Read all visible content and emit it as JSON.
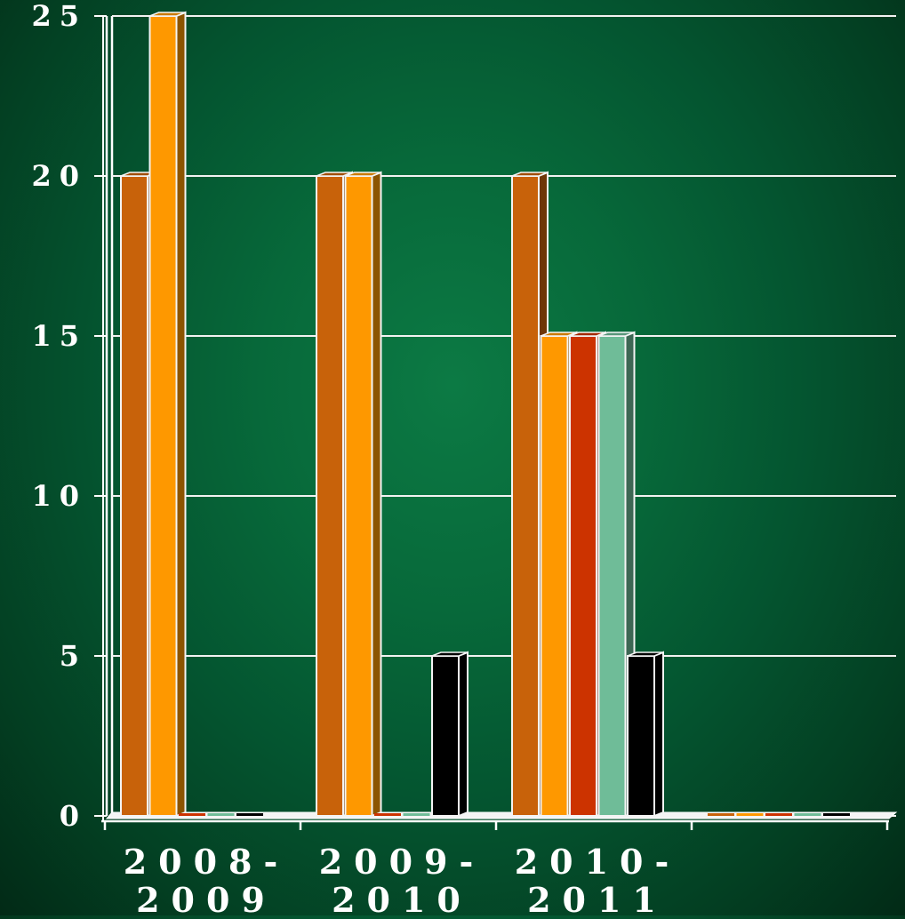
{
  "chart_data": {
    "type": "bar",
    "title": "",
    "xlabel": "",
    "ylabel": "",
    "ylim": [
      0,
      25
    ],
    "yticks": [
      0,
      5,
      10,
      15,
      20,
      25
    ],
    "ytick_labels": [
      "0",
      "5",
      "10",
      "15",
      "20",
      "25"
    ],
    "grid": true,
    "legend": "none",
    "categories": [
      {
        "line1": "2008-",
        "line2": "2009"
      },
      {
        "line1": "2009-",
        "line2": "2010"
      },
      {
        "line1": "2010-",
        "line2": "2011"
      },
      {
        "line1": "",
        "line2": ""
      }
    ],
    "series": [
      {
        "color": "#c8620a",
        "values": [
          20,
          20,
          20,
          0
        ]
      },
      {
        "color": "#fe9800",
        "values": [
          25,
          20,
          15,
          0
        ]
      },
      {
        "color": "#cc3300",
        "values": [
          0,
          0,
          15,
          0
        ]
      },
      {
        "color": "#6fbc98",
        "values": [
          0,
          0,
          15,
          0
        ]
      },
      {
        "color": "#000000",
        "values": [
          0,
          5,
          5,
          0
        ]
      }
    ]
  }
}
